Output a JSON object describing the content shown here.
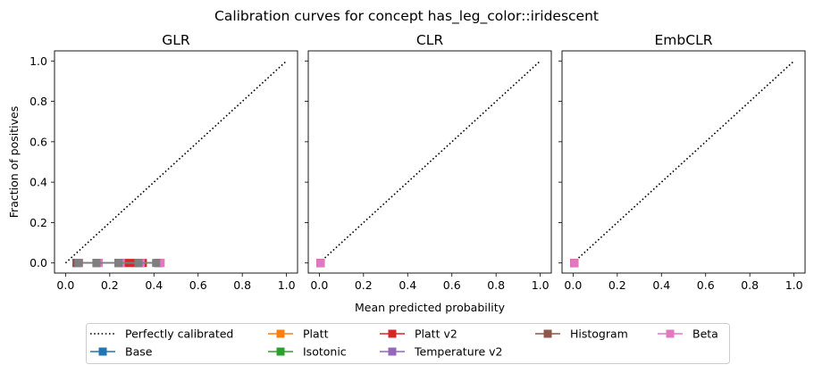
{
  "figure_title": "Calibration curves for concept has_leg_color::iridescent",
  "colors": {
    "Perfectly calibrated": "#000000",
    "Base": "#1f77b4",
    "Platt": "#ff7f0e",
    "Isotonic": "#2ca02c",
    "Platt v2": "#d62728",
    "Temperature v2": "#9467bd",
    "Histogram": "#8c564b",
    "Beta": "#e377c2",
    "overlap": "#7f7f7f"
  },
  "legend": {
    "placement": "below, centered",
    "entries": [
      "Perfectly calibrated",
      "Base",
      "Platt",
      "Isotonic",
      "Platt v2",
      "Temperature v2",
      "Histogram",
      "Beta"
    ]
  },
  "chart_data": [
    {
      "type": "line",
      "title": "GLR",
      "xlabel": "",
      "ylabel": "Fraction of positives",
      "xlim": [
        -0.05,
        1.05
      ],
      "ylim": [
        -0.05,
        1.05
      ],
      "xticks": [
        "0.0",
        "0.2",
        "0.4",
        "0.6",
        "0.8",
        "1.0"
      ],
      "yticks": [
        "0.0",
        "0.2",
        "0.4",
        "0.6",
        "0.8",
        "1.0"
      ],
      "series": [
        {
          "name": "Perfectly calibrated",
          "style": "dotted",
          "x": [
            0,
            1
          ],
          "y": [
            0,
            1
          ]
        },
        {
          "name": "Base",
          "x": [
            0.05,
            0.14,
            0.24,
            0.33,
            0.42
          ],
          "y": [
            0,
            0,
            0,
            0,
            0
          ]
        },
        {
          "name": "Platt",
          "x": [
            0.06,
            0.15,
            0.25,
            0.34,
            0.43
          ],
          "y": [
            0,
            0,
            0,
            0,
            0
          ]
        },
        {
          "name": "Isotonic",
          "x": [
            0.05,
            0.14,
            0.24,
            0.33,
            0.42
          ],
          "y": [
            0,
            0,
            0,
            0,
            0
          ]
        },
        {
          "name": "Platt v2",
          "x": [
            0.27,
            0.29,
            0.31,
            0.33,
            0.35
          ],
          "y": [
            0,
            0,
            0,
            0,
            0
          ]
        },
        {
          "name": "Temperature v2",
          "x": [
            0.05,
            0.14,
            0.24,
            0.33,
            0.42
          ],
          "y": [
            0,
            0,
            0,
            0,
            0
          ]
        },
        {
          "name": "Histogram",
          "x": [
            0.05,
            0.14,
            0.24,
            0.33,
            0.42
          ],
          "y": [
            0,
            0,
            0,
            0,
            0
          ]
        },
        {
          "name": "Beta",
          "x": [
            0.06,
            0.15,
            0.25,
            0.34,
            0.43
          ],
          "y": [
            0,
            0,
            0,
            0,
            0
          ]
        },
        {
          "overlap": true,
          "x": [
            0.06,
            0.14,
            0.24,
            0.33,
            0.41
          ],
          "y": [
            0,
            0,
            0,
            0,
            0
          ]
        }
      ]
    },
    {
      "type": "line",
      "title": "CLR",
      "xlabel": "Mean predicted probability",
      "ylabel": "",
      "xlim": [
        -0.05,
        1.05
      ],
      "ylim": [
        -0.05,
        1.05
      ],
      "xticks": [
        "0.0",
        "0.2",
        "0.4",
        "0.6",
        "0.8",
        "1.0"
      ],
      "yticks": [],
      "series": [
        {
          "name": "Perfectly calibrated",
          "style": "dotted",
          "x": [
            0,
            1
          ],
          "y": [
            0,
            1
          ]
        },
        {
          "name": "Base",
          "x": [
            0.005
          ],
          "y": [
            0
          ]
        },
        {
          "name": "Platt",
          "x": [
            0.005
          ],
          "y": [
            0
          ]
        },
        {
          "name": "Isotonic",
          "x": [
            0.005
          ],
          "y": [
            0
          ]
        },
        {
          "name": "Platt v2",
          "x": [
            0.005
          ],
          "y": [
            0
          ]
        },
        {
          "name": "Temperature v2",
          "x": [
            0.005
          ],
          "y": [
            0
          ]
        },
        {
          "name": "Histogram",
          "x": [
            0.005
          ],
          "y": [
            0
          ]
        },
        {
          "name": "Beta",
          "x": [
            0.005
          ],
          "y": [
            0
          ]
        }
      ]
    },
    {
      "type": "line",
      "title": "EmbCLR",
      "xlabel": "",
      "ylabel": "",
      "xlim": [
        -0.05,
        1.05
      ],
      "ylim": [
        -0.05,
        1.05
      ],
      "xticks": [
        "0.0",
        "0.2",
        "0.4",
        "0.6",
        "0.8",
        "1.0"
      ],
      "yticks": [],
      "series": [
        {
          "name": "Perfectly calibrated",
          "style": "dotted",
          "x": [
            0,
            1
          ],
          "y": [
            0,
            1
          ]
        },
        {
          "name": "Base",
          "x": [
            0.005
          ],
          "y": [
            0
          ]
        },
        {
          "name": "Platt",
          "x": [
            0.005
          ],
          "y": [
            0
          ]
        },
        {
          "name": "Isotonic",
          "x": [
            0.005
          ],
          "y": [
            0
          ]
        },
        {
          "name": "Platt v2",
          "x": [
            0.005
          ],
          "y": [
            0
          ]
        },
        {
          "name": "Temperature v2",
          "x": [
            0.005
          ],
          "y": [
            0
          ]
        },
        {
          "name": "Histogram",
          "x": [
            0.005
          ],
          "y": [
            0
          ]
        },
        {
          "name": "Beta",
          "x": [
            0.005
          ],
          "y": [
            0
          ]
        }
      ]
    }
  ]
}
